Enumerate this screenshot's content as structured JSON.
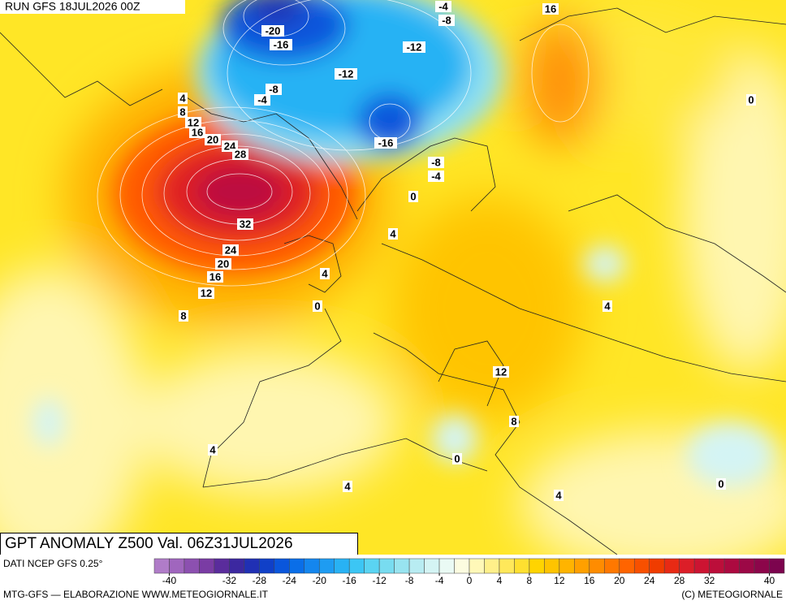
{
  "header": {
    "run": "RUN GFS 18JUL2026 00Z"
  },
  "map": {
    "title": "GPT ANOMALY Z500 Val. 06Z31JUL2026",
    "contour_labels": [
      -20,
      -16,
      -4,
      -8,
      16,
      -12,
      -12,
      -8,
      -4,
      4,
      8,
      12,
      16,
      20,
      24,
      28,
      32,
      24,
      20,
      16,
      12,
      8,
      -16,
      -8,
      -4,
      0,
      4,
      4,
      0,
      0,
      4,
      12,
      8,
      4,
      0,
      4,
      4,
      0
    ]
  },
  "legend": {
    "source": "DATI NCEP GFS 0.25°",
    "colors": [
      "#b07cc8",
      "#a066be",
      "#8c50b0",
      "#7a3ca4",
      "#5a2c9c",
      "#3c28a0",
      "#2030b4",
      "#1040c8",
      "#0a56dc",
      "#0a6ee8",
      "#1486ee",
      "#1e9cf2",
      "#28b2f4",
      "#3cc6f4",
      "#5ad4f2",
      "#78dcf0",
      "#98e4f0",
      "#b8ecf2",
      "#d4f4f4",
      "#eafaf4",
      "#fcfce0",
      "#fff8b8",
      "#fff08a",
      "#ffe85a",
      "#ffe030",
      "#ffd400",
      "#ffc400",
      "#ffb400",
      "#ffa000",
      "#ff8c00",
      "#ff7800",
      "#ff6400",
      "#f85000",
      "#f03c00",
      "#e82a14",
      "#dc1e28",
      "#cc1432",
      "#bc0e3a",
      "#ac0a40",
      "#9c0846",
      "#8c064a",
      "#7c044e"
    ],
    "ticks": [
      -40,
      -32,
      -28,
      -24,
      -20,
      -16,
      -12,
      -8,
      -4,
      0,
      4,
      8,
      12,
      16,
      20,
      24,
      28,
      32,
      40
    ],
    "range": [
      -42,
      42
    ]
  },
  "footer": {
    "left": "MTG-GFS — ELABORAZIONE WWW.METEOGIORNALE.IT",
    "right": "(C) METEOGIORNALE"
  }
}
